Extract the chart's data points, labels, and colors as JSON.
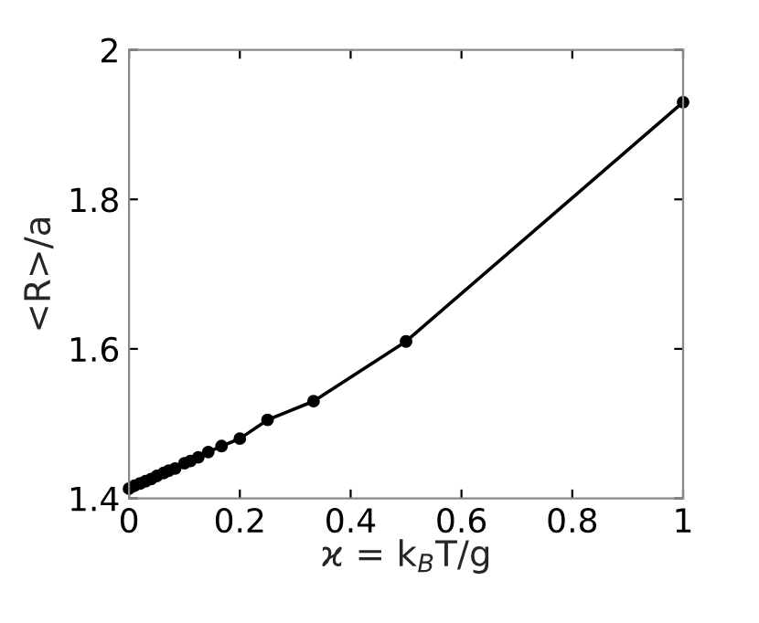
{
  "chart_data": {
    "type": "line",
    "xlabel": "ϰ = k$_{B}$T/g",
    "ylabel": "<R>/a",
    "series": [
      {
        "color": "#000000",
        "marker": "circle",
        "x": [
          0.0,
          0.01,
          0.02,
          0.03,
          0.04,
          0.05,
          0.0625,
          0.0714,
          0.0833,
          0.1,
          0.111,
          0.125,
          0.143,
          0.167,
          0.2,
          0.25,
          0.333,
          0.5,
          1.0
        ],
        "values": [
          1.413,
          1.417,
          1.42,
          1.423,
          1.426,
          1.43,
          1.434,
          1.437,
          1.44,
          1.447,
          1.45,
          1.455,
          1.462,
          1.47,
          1.48,
          1.505,
          1.53,
          1.61,
          1.93
        ]
      }
    ],
    "xlim": [
      0,
      1
    ],
    "ylim": [
      1.4,
      2
    ],
    "xticks": [
      0,
      0.2,
      0.4,
      0.6,
      0.8,
      1
    ],
    "yticks": [
      1.4,
      1.6,
      1.8,
      2
    ],
    "grid": false,
    "legend": false
  }
}
